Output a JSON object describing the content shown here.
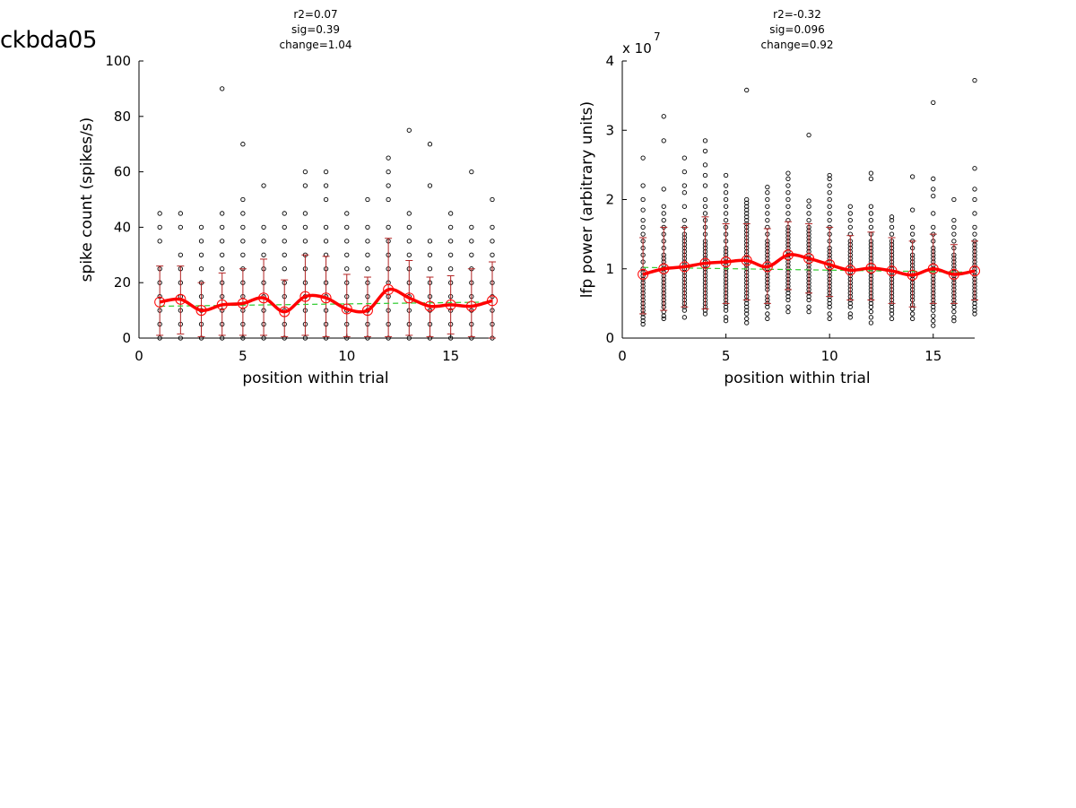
{
  "figure_title": "ckbda05",
  "colors": {
    "mean_line": "#ff0000",
    "error_bar": "#b22222",
    "fit_line": "#33cc33",
    "points": "#000000"
  },
  "chart_data": [
    {
      "type": "scatter",
      "stats": [
        "r2=0.07",
        "sig=0.39",
        "change=1.04"
      ],
      "xlabel": "position within trial",
      "ylabel": "spike count (spikes/s)",
      "xlim": [
        0,
        17
      ],
      "ylim": [
        0,
        100
      ],
      "xticks": [
        0,
        5,
        10,
        15
      ],
      "yticks": [
        0,
        20,
        40,
        60,
        80,
        100
      ],
      "x": [
        1,
        2,
        3,
        4,
        5,
        6,
        7,
        8,
        9,
        10,
        11,
        12,
        13,
        14,
        15,
        16,
        17
      ],
      "mean": [
        13,
        14,
        10,
        12,
        12.5,
        14.5,
        9.5,
        15,
        14.5,
        10.5,
        10,
        17.5,
        14.5,
        11.5,
        12,
        11.5,
        13.5
      ],
      "err_low": [
        1,
        1.5,
        0.5,
        1,
        1,
        1,
        0.5,
        1,
        0.5,
        0.5,
        0.5,
        0.5,
        1,
        0.5,
        1.5,
        0.5,
        0
      ],
      "err_high": [
        26,
        26,
        20,
        23.5,
        25,
        28.5,
        21,
        30,
        29.5,
        23,
        22,
        36,
        28,
        22,
        22.5,
        25,
        27.5
      ],
      "fit": [
        11.5,
        13.0
      ],
      "points": [
        [
          0,
          5,
          10,
          15,
          20,
          25,
          35,
          40,
          45
        ],
        [
          0,
          5,
          10,
          15,
          20,
          25,
          30,
          40,
          45
        ],
        [
          0,
          5,
          10,
          15,
          20,
          25,
          30,
          35,
          40
        ],
        [
          0,
          5,
          10,
          15,
          20,
          25,
          30,
          35,
          40,
          45,
          90
        ],
        [
          0,
          5,
          10,
          15,
          20,
          25,
          30,
          35,
          40,
          45,
          50,
          70
        ],
        [
          0,
          5,
          10,
          15,
          20,
          25,
          30,
          35,
          40,
          55
        ],
        [
          0,
          5,
          10,
          15,
          20,
          25,
          30,
          35,
          40,
          45
        ],
        [
          0,
          5,
          10,
          15,
          20,
          25,
          30,
          35,
          40,
          45,
          55,
          60
        ],
        [
          0,
          5,
          10,
          15,
          20,
          25,
          30,
          35,
          40,
          50,
          55,
          60
        ],
        [
          0,
          5,
          10,
          15,
          20,
          25,
          30,
          35,
          40,
          45
        ],
        [
          0,
          5,
          10,
          15,
          20,
          25,
          30,
          35,
          40,
          50
        ],
        [
          0,
          5,
          10,
          15,
          20,
          25,
          30,
          35,
          40,
          50,
          55,
          60,
          65
        ],
        [
          0,
          5,
          10,
          15,
          20,
          25,
          30,
          35,
          40,
          45,
          75
        ],
        [
          0,
          5,
          10,
          15,
          20,
          25,
          30,
          35,
          55,
          70
        ],
        [
          0,
          5,
          10,
          15,
          20,
          25,
          30,
          35,
          40,
          45
        ],
        [
          0,
          5,
          10,
          15,
          20,
          25,
          30,
          35,
          40,
          60
        ],
        [
          0,
          5,
          10,
          15,
          20,
          25,
          30,
          35,
          40,
          50
        ]
      ]
    },
    {
      "type": "scatter",
      "stats": [
        "r2=-0.32",
        "sig=0.096",
        "change=0.92"
      ],
      "xlabel": "position within trial",
      "ylabel": "lfp power (arbitrary units)",
      "scale_label": "x 10",
      "scale_exponent": "7",
      "xlim": [
        0,
        17
      ],
      "ylim": [
        0,
        4
      ],
      "xticks": [
        0,
        5,
        10,
        15
      ],
      "yticks": [
        0,
        1,
        2,
        3,
        4
      ],
      "x": [
        1,
        2,
        3,
        4,
        5,
        6,
        7,
        8,
        9,
        10,
        11,
        12,
        13,
        14,
        15,
        16,
        17
      ],
      "mean": [
        0.92,
        1.0,
        1.03,
        1.08,
        1.1,
        1.12,
        1.03,
        1.2,
        1.15,
        1.06,
        0.98,
        1.01,
        0.97,
        0.91,
        1.0,
        0.92,
        0.97
      ],
      "err_low": [
        0.35,
        0.4,
        0.45,
        0.42,
        0.5,
        0.55,
        0.5,
        0.7,
        0.65,
        0.6,
        0.55,
        0.55,
        0.5,
        0.45,
        0.5,
        0.5,
        0.55
      ],
      "err_high": [
        1.45,
        1.6,
        1.6,
        1.75,
        1.65,
        1.65,
        1.58,
        1.68,
        1.65,
        1.6,
        1.48,
        1.53,
        1.45,
        1.4,
        1.5,
        1.35,
        1.4
      ],
      "fit": [
        1.02,
        0.95
      ],
      "points": [
        [
          0.2,
          0.25,
          0.3,
          0.35,
          0.4,
          0.45,
          0.5,
          0.55,
          0.6,
          0.65,
          0.7,
          0.75,
          0.8,
          0.85,
          0.9,
          0.95,
          1.0,
          1.1,
          1.2,
          1.3,
          1.4,
          1.5,
          1.6,
          1.7,
          1.85,
          2.0,
          2.2,
          2.6
        ],
        [
          0.28,
          0.32,
          0.38,
          0.45,
          0.5,
          0.55,
          0.6,
          0.65,
          0.7,
          0.75,
          0.8,
          0.85,
          0.9,
          0.95,
          1.0,
          1.05,
          1.1,
          1.15,
          1.2,
          1.3,
          1.4,
          1.5,
          1.6,
          1.7,
          1.8,
          1.9,
          2.15,
          2.85,
          3.2
        ],
        [
          0.3,
          0.4,
          0.45,
          0.5,
          0.55,
          0.6,
          0.65,
          0.7,
          0.75,
          0.8,
          0.85,
          0.9,
          0.95,
          1.0,
          1.05,
          1.1,
          1.15,
          1.2,
          1.25,
          1.3,
          1.35,
          1.4,
          1.45,
          1.5,
          1.6,
          1.7,
          1.9,
          2.1,
          2.2,
          2.4,
          2.6
        ],
        [
          0.35,
          0.4,
          0.45,
          0.5,
          0.55,
          0.6,
          0.65,
          0.7,
          0.75,
          0.8,
          0.85,
          0.9,
          0.95,
          1.0,
          1.05,
          1.1,
          1.15,
          1.2,
          1.25,
          1.3,
          1.35,
          1.4,
          1.5,
          1.6,
          1.7,
          1.8,
          1.9,
          2.0,
          2.2,
          2.35,
          2.5,
          2.7,
          2.85
        ],
        [
          0.25,
          0.3,
          0.4,
          0.45,
          0.5,
          0.55,
          0.6,
          0.65,
          0.7,
          0.75,
          0.8,
          0.85,
          0.9,
          0.95,
          1.0,
          1.05,
          1.1,
          1.15,
          1.2,
          1.25,
          1.3,
          1.4,
          1.5,
          1.6,
          1.7,
          1.8,
          1.9,
          2.0,
          2.1,
          2.2,
          2.35
        ],
        [
          0.22,
          0.28,
          0.35,
          0.4,
          0.45,
          0.5,
          0.55,
          0.6,
          0.65,
          0.7,
          0.75,
          0.8,
          0.85,
          0.9,
          0.95,
          1.0,
          1.05,
          1.1,
          1.15,
          1.2,
          1.25,
          1.3,
          1.35,
          1.4,
          1.45,
          1.5,
          1.55,
          1.6,
          1.65,
          1.7,
          1.75,
          1.8,
          1.85,
          1.9,
          1.95,
          2.0,
          3.58
        ],
        [
          0.28,
          0.35,
          0.45,
          0.5,
          0.55,
          0.6,
          0.7,
          0.75,
          0.8,
          0.85,
          0.9,
          0.95,
          1.0,
          1.05,
          1.1,
          1.15,
          1.2,
          1.25,
          1.3,
          1.35,
          1.4,
          1.5,
          1.6,
          1.7,
          1.8,
          1.9,
          2.0,
          2.1,
          2.18
        ],
        [
          0.38,
          0.45,
          0.55,
          0.6,
          0.65,
          0.7,
          0.75,
          0.8,
          0.85,
          0.9,
          0.95,
          1.0,
          1.05,
          1.1,
          1.15,
          1.2,
          1.25,
          1.3,
          1.35,
          1.4,
          1.45,
          1.5,
          1.55,
          1.6,
          1.7,
          1.8,
          1.9,
          2.0,
          2.1,
          2.2,
          2.3,
          2.38
        ],
        [
          0.38,
          0.45,
          0.55,
          0.6,
          0.65,
          0.7,
          0.75,
          0.8,
          0.85,
          0.9,
          0.95,
          1.0,
          1.05,
          1.1,
          1.15,
          1.2,
          1.25,
          1.3,
          1.35,
          1.4,
          1.45,
          1.5,
          1.55,
          1.6,
          1.7,
          1.8,
          1.9,
          1.98,
          2.93
        ],
        [
          0.28,
          0.35,
          0.45,
          0.5,
          0.55,
          0.6,
          0.65,
          0.7,
          0.75,
          0.8,
          0.85,
          0.9,
          0.95,
          1.0,
          1.05,
          1.1,
          1.15,
          1.2,
          1.25,
          1.3,
          1.4,
          1.5,
          1.6,
          1.7,
          1.8,
          1.9,
          2.0,
          2.1,
          2.2,
          2.3,
          2.35
        ],
        [
          0.3,
          0.35,
          0.45,
          0.5,
          0.55,
          0.6,
          0.65,
          0.7,
          0.75,
          0.8,
          0.85,
          0.9,
          0.95,
          1.0,
          1.05,
          1.1,
          1.15,
          1.2,
          1.25,
          1.3,
          1.35,
          1.4,
          1.5,
          1.6,
          1.7,
          1.8,
          1.9
        ],
        [
          0.22,
          0.3,
          0.38,
          0.45,
          0.5,
          0.55,
          0.6,
          0.65,
          0.7,
          0.75,
          0.8,
          0.85,
          0.9,
          0.95,
          1.0,
          1.05,
          1.1,
          1.15,
          1.2,
          1.25,
          1.3,
          1.35,
          1.4,
          1.5,
          1.6,
          1.7,
          1.8,
          1.9,
          2.3,
          2.38
        ],
        [
          0.28,
          0.35,
          0.4,
          0.45,
          0.5,
          0.55,
          0.6,
          0.65,
          0.7,
          0.75,
          0.8,
          0.85,
          0.9,
          0.95,
          1.0,
          1.05,
          1.1,
          1.15,
          1.2,
          1.25,
          1.3,
          1.35,
          1.4,
          1.5,
          1.6,
          1.7,
          1.75
        ],
        [
          0.28,
          0.35,
          0.42,
          0.48,
          0.55,
          0.6,
          0.65,
          0.7,
          0.75,
          0.8,
          0.85,
          0.9,
          0.95,
          1.0,
          1.05,
          1.1,
          1.15,
          1.2,
          1.3,
          1.4,
          1.5,
          1.6,
          1.85,
          2.33
        ],
        [
          0.18,
          0.25,
          0.32,
          0.4,
          0.45,
          0.5,
          0.55,
          0.6,
          0.65,
          0.7,
          0.75,
          0.8,
          0.85,
          0.9,
          0.95,
          1.0,
          1.05,
          1.1,
          1.15,
          1.2,
          1.25,
          1.3,
          1.4,
          1.5,
          1.6,
          1.8,
          2.05,
          2.15,
          2.3,
          3.4
        ],
        [
          0.25,
          0.3,
          0.38,
          0.45,
          0.5,
          0.55,
          0.6,
          0.65,
          0.7,
          0.75,
          0.8,
          0.85,
          0.9,
          0.95,
          1.0,
          1.05,
          1.1,
          1.15,
          1.2,
          1.3,
          1.4,
          1.5,
          1.6,
          1.7,
          2.0
        ],
        [
          0.35,
          0.4,
          0.45,
          0.5,
          0.55,
          0.6,
          0.65,
          0.7,
          0.75,
          0.8,
          0.85,
          0.9,
          0.95,
          1.0,
          1.05,
          1.1,
          1.15,
          1.2,
          1.25,
          1.3,
          1.35,
          1.4,
          1.5,
          1.6,
          1.8,
          2.0,
          2.15,
          2.45,
          3.72
        ]
      ]
    }
  ]
}
